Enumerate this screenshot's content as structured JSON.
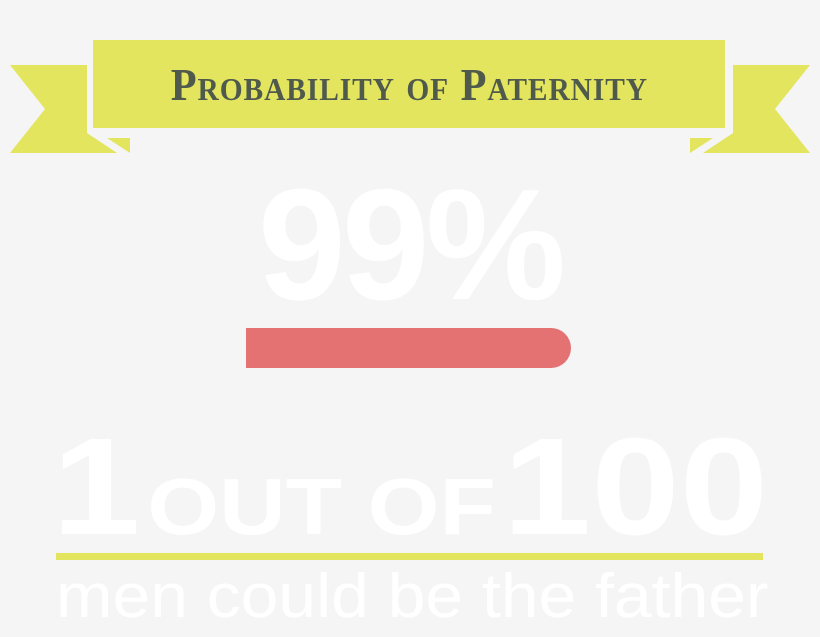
{
  "banner": {
    "title": "Probability of Paternity",
    "color": "#e3e55e",
    "text_color": "#4f5a4c"
  },
  "probability": {
    "label": "99%",
    "value_percent": 99,
    "bar_color": "#e57272"
  },
  "odds": {
    "count": "1",
    "middle": "out of",
    "total": "100"
  },
  "subtitle": "men could be the father",
  "colors": {
    "background": "#f5f5f5",
    "text": "#ffffff"
  }
}
